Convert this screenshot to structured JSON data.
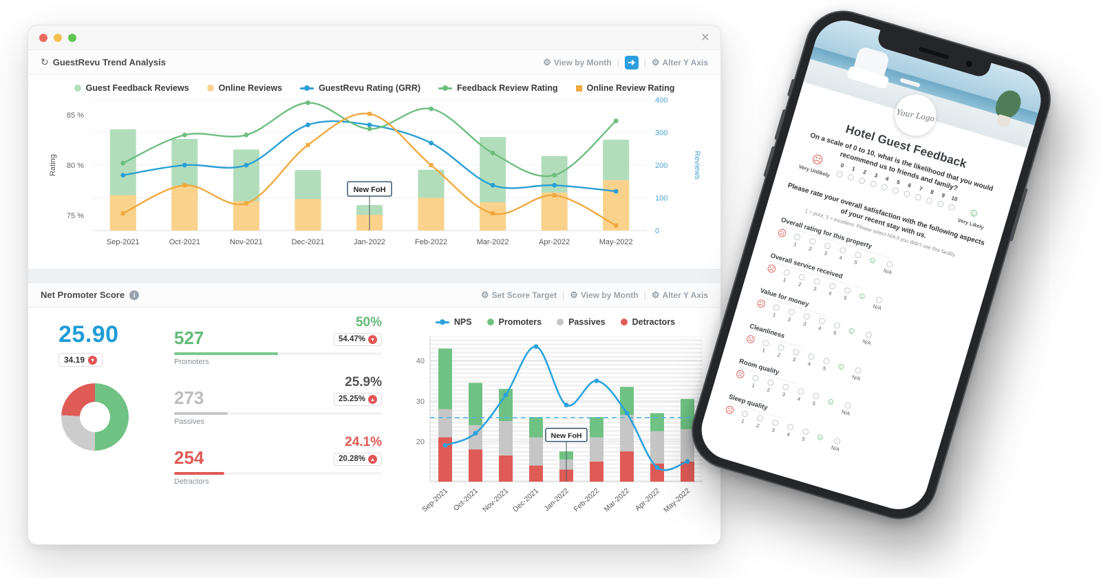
{
  "window": {
    "close_glyph": "×"
  },
  "trend": {
    "title": "GuestRevu Trend Analysis",
    "controls": {
      "view_by_month": "View by Month",
      "alter_y_axis": "Alter Y Axis"
    },
    "chart_data": {
      "type": "bar+line",
      "categories": [
        "Sep-2021",
        "Oct-2021",
        "Nov-2021",
        "Dec-2021",
        "Jan-2022",
        "Feb-2022",
        "Mar-2022",
        "Apr-2022",
        "May-2022"
      ],
      "left_axis": {
        "label": "Rating",
        "min": 73.5,
        "max": 86.5,
        "ticks": [
          {
            "v": 75,
            "label": "75 %"
          },
          {
            "v": 80,
            "label": "80 %"
          },
          {
            "v": 85,
            "label": "85 %"
          }
        ]
      },
      "right_axis": {
        "label": "Reviews",
        "min": 0,
        "max": 400,
        "ticks": [
          0,
          100,
          200,
          300,
          400
        ]
      },
      "bar_series": [
        {
          "name": "Guest Feedback Reviews",
          "color": "#b2ddbb",
          "values": [
            310,
            280,
            248,
            185,
            78,
            186,
            286,
            228,
            278
          ]
        },
        {
          "name": "Online Reviews",
          "color": "#fbd28c",
          "values": [
            108,
            136,
            90,
            96,
            48,
            100,
            86,
            116,
            154
          ]
        }
      ],
      "line_series": [
        {
          "name": "GuestRevu Rating (GRR)",
          "color": "#2a9fd6",
          "marker": "circle",
          "values": [
            79,
            80,
            80,
            84,
            84,
            82.2,
            78,
            78,
            77.4
          ]
        },
        {
          "name": "Feedback Review Rating",
          "color": "#6fbe80",
          "marker": "circle",
          "values": [
            80.2,
            83,
            83,
            86.2,
            83.6,
            85.6,
            81.2,
            79,
            84.4
          ]
        },
        {
          "name": "Online Review Rating",
          "color": "#efa93f",
          "marker": "square",
          "values": [
            75.2,
            78,
            76.2,
            82,
            85.1,
            80,
            75.2,
            77,
            74
          ]
        }
      ],
      "annotation": {
        "label": "New FoH",
        "category": "Jan-2022",
        "y": 77.6
      }
    }
  },
  "nps": {
    "title": "Net Promoter Score",
    "controls": {
      "set_score_target": "Set Score Target",
      "view_by_month": "View by Month",
      "alter_y_axis": "Alter Y Axis"
    },
    "score": "25.90",
    "score_badge": {
      "value": "34.19",
      "direction": "down"
    },
    "stats": [
      {
        "count": "527",
        "label": "Promoters",
        "pct": "50%",
        "pct_value": 50,
        "badge": "54.47%",
        "badge_direction": "down",
        "count_color": "#62bb77",
        "pct_color": "#62bb77",
        "bar_color": "#7cc88e"
      },
      {
        "count": "273",
        "label": "Passives",
        "pct": "25.9%",
        "pct_value": 25.9,
        "badge": "25.25%",
        "badge_direction": "up",
        "count_color": "#bdbdbd",
        "pct_color": "#555555",
        "bar_color": "#c4c4c4"
      },
      {
        "count": "254",
        "label": "Detractors",
        "pct": "24.1%",
        "pct_value": 24.1,
        "badge": "20.28%",
        "badge_direction": "up",
        "count_color": "#e05a55",
        "pct_color": "#e05a55",
        "bar_color": "#e05a55"
      }
    ],
    "donut_segments": [
      {
        "name": "Promoters",
        "color": "#6fc283",
        "pct": 50
      },
      {
        "name": "Passives",
        "color": "#cccccc",
        "pct": 25.9
      },
      {
        "name": "Detractors",
        "color": "#df5b56",
        "pct": 24.1
      }
    ],
    "chart_data": {
      "type": "stacked-bar+line",
      "categories": [
        "Sep-2021",
        "Oct-2021",
        "Nov-2021",
        "Dec-2021",
        "Jan-2022",
        "Feb-2022",
        "Mar-2022",
        "Apr-2022",
        "May-2022"
      ],
      "ymin": 10,
      "ymax": 46,
      "y_ticks": [
        20,
        30,
        40
      ],
      "series_colors": {
        "nps": "#2aa3dc",
        "promoters": "#6fc283",
        "passives": "#c6c6c6",
        "detractors": "#df5b56"
      },
      "legend": [
        "NPS",
        "Promoters",
        "Passives",
        "Detractors"
      ],
      "stack_tops": {
        "detractors": [
          21,
          18,
          16.5,
          14,
          13,
          15,
          17.5,
          14.5,
          15
        ],
        "passives": [
          28,
          24,
          25,
          21,
          15.5,
          21,
          26.5,
          22.5,
          23
        ],
        "promoters": [
          43,
          34.5,
          33,
          26,
          17.5,
          26,
          33.5,
          27,
          30.5
        ]
      },
      "nps_line": [
        19,
        22,
        31.5,
        43.5,
        29,
        35,
        27,
        13.5,
        15
      ],
      "target_line": 25.9,
      "annotation": {
        "label": "New FoH",
        "category": "Jan-2022",
        "y": 21.5
      }
    }
  },
  "phone": {
    "title": "Hotel Guest Feedback",
    "logo_text": "Your Logo",
    "nps_question": "On a scale of 0 to 10, what is the likelihood that you would recommend us to friends and family?",
    "scale_numbers": [
      "0",
      "1",
      "2",
      "3",
      "4",
      "5",
      "6",
      "7",
      "8",
      "9",
      "10"
    ],
    "anchor_low": "Very Unlikely",
    "anchor_high": "Very Likely",
    "satisfaction_intro": "Please rate your overall satisfaction with the following aspects of your recent stay with us.",
    "satisfaction_note": "1 = poor, 5 = excellent. Please select N/A if you didn't use this facility.",
    "rating_scale": [
      "1",
      "2",
      "3",
      "4",
      "5"
    ],
    "na_label": "N/A",
    "aspects": [
      "Overall rating for this property",
      "Overall service received",
      "Value for money",
      "Cleanliness",
      "Room quality",
      "Sleep quality"
    ]
  }
}
